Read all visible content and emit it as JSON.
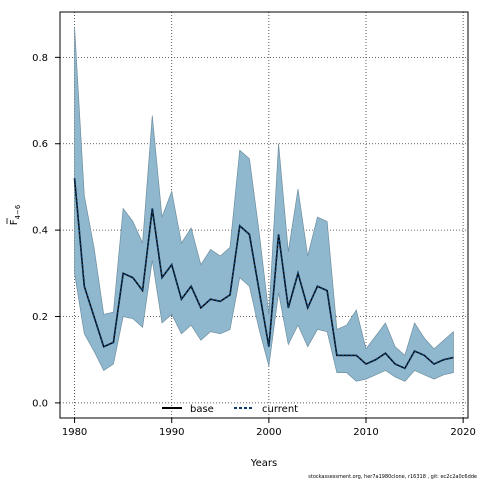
{
  "chart_data": {
    "type": "line",
    "xlabel": "Years",
    "ylabel_main": "F",
    "ylabel_sub": "4−6",
    "xlim": [
      1978.5,
      2020.5
    ],
    "ylim": [
      -0.035,
      0.905
    ],
    "xticks": [
      1980,
      1990,
      2000,
      2010,
      2020
    ],
    "yticks": [
      0.0,
      0.2,
      0.4,
      0.6,
      0.8
    ],
    "ytick_labels": [
      "0.0",
      "0.2",
      "0.4",
      "0.6",
      "0.8"
    ],
    "grid": true,
    "legend_placement": "bottom-center",
    "x": [
      1980,
      1981,
      1982,
      1983,
      1984,
      1985,
      1986,
      1987,
      1988,
      1989,
      1990,
      1991,
      1992,
      1993,
      1994,
      1995,
      1996,
      1997,
      1998,
      1999,
      2000,
      2001,
      2002,
      2003,
      2004,
      2005,
      2006,
      2007,
      2008,
      2009,
      2010,
      2011,
      2012,
      2013,
      2014,
      2015,
      2016,
      2017,
      2018,
      2019
    ],
    "series": [
      {
        "name": "base",
        "color": "#000000",
        "style": "solid",
        "values": [
          0.52,
          0.27,
          0.2,
          0.13,
          0.14,
          0.3,
          0.29,
          0.26,
          0.45,
          0.29,
          0.32,
          0.24,
          0.27,
          0.22,
          0.24,
          0.235,
          0.25,
          0.41,
          0.39,
          0.26,
          0.13,
          0.39,
          0.22,
          0.3,
          0.22,
          0.27,
          0.26,
          0.11,
          0.11,
          0.11,
          0.09,
          0.1,
          0.115,
          0.09,
          0.08,
          0.12,
          0.11,
          0.09,
          0.1,
          0.105
        ]
      },
      {
        "name": "current",
        "color": "#0d3b66",
        "style": "dashed",
        "values": [
          0.52,
          0.27,
          0.2,
          0.13,
          0.14,
          0.3,
          0.29,
          0.26,
          0.45,
          0.29,
          0.32,
          0.24,
          0.27,
          0.22,
          0.24,
          0.235,
          0.25,
          0.41,
          0.39,
          0.26,
          0.13,
          0.39,
          0.22,
          0.3,
          0.22,
          0.27,
          0.26,
          0.11,
          0.11,
          0.11,
          0.09,
          0.1,
          0.115,
          0.09,
          0.08,
          0.12,
          0.11,
          0.09,
          0.1,
          0.105
        ]
      }
    ],
    "band": {
      "color": "#8fb7ce",
      "lower": [
        0.3,
        0.16,
        0.12,
        0.075,
        0.09,
        0.2,
        0.195,
        0.175,
        0.33,
        0.185,
        0.205,
        0.16,
        0.18,
        0.145,
        0.165,
        0.16,
        0.17,
        0.29,
        0.27,
        0.17,
        0.085,
        0.255,
        0.135,
        0.18,
        0.13,
        0.17,
        0.165,
        0.07,
        0.07,
        0.05,
        0.055,
        0.065,
        0.075,
        0.06,
        0.05,
        0.075,
        0.065,
        0.055,
        0.065,
        0.07
      ],
      "upper": [
        0.87,
        0.48,
        0.36,
        0.205,
        0.21,
        0.45,
        0.42,
        0.37,
        0.665,
        0.43,
        0.49,
        0.37,
        0.405,
        0.32,
        0.355,
        0.34,
        0.36,
        0.585,
        0.565,
        0.395,
        0.205,
        0.6,
        0.35,
        0.495,
        0.34,
        0.43,
        0.42,
        0.17,
        0.18,
        0.215,
        0.125,
        0.155,
        0.185,
        0.13,
        0.11,
        0.185,
        0.15,
        0.125,
        0.145,
        0.165
      ]
    }
  },
  "footnote": "stockassessment.org, her7a1980clone, r16318 , git: ec2c2a0c6dde"
}
